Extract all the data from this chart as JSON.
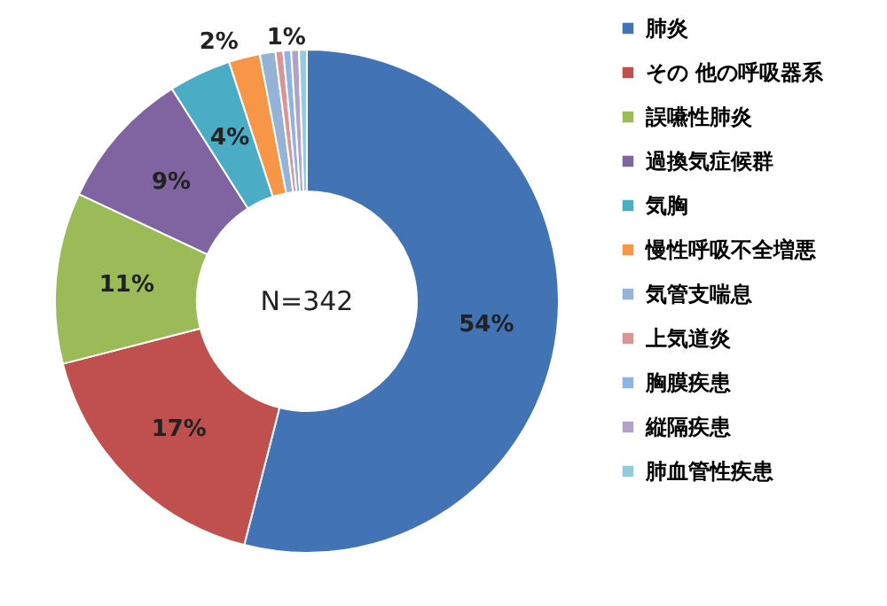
{
  "chart_data": {
    "type": "donut",
    "categories": [
      "肺炎",
      "その 他の呼吸器系",
      "誤嚥性肺炎",
      "過換気症候群",
      "気胸",
      "慢性呼吸不全増悪",
      "気管支喘息",
      "上気道炎",
      "胸膜疾患",
      "縦隔疾患",
      "肺血管性疾患"
    ],
    "values": [
      54,
      17,
      11,
      9,
      4,
      2,
      1,
      0.5,
      0.5,
      0.5,
      0.5
    ],
    "value_labels": [
      "54%",
      "17%",
      "11%",
      "9%",
      "4%",
      "2%",
      "1%",
      null,
      null,
      null,
      null
    ],
    "colors": [
      "#4273b5",
      "#c0504d",
      "#9bbb59",
      "#8064a2",
      "#4bacc6",
      "#f79646",
      "#95b3d7",
      "#d99694",
      "#8eb4e3",
      "#b3a2c7",
      "#93cddd"
    ],
    "annotations": [
      "N=342"
    ],
    "legend": "right"
  }
}
